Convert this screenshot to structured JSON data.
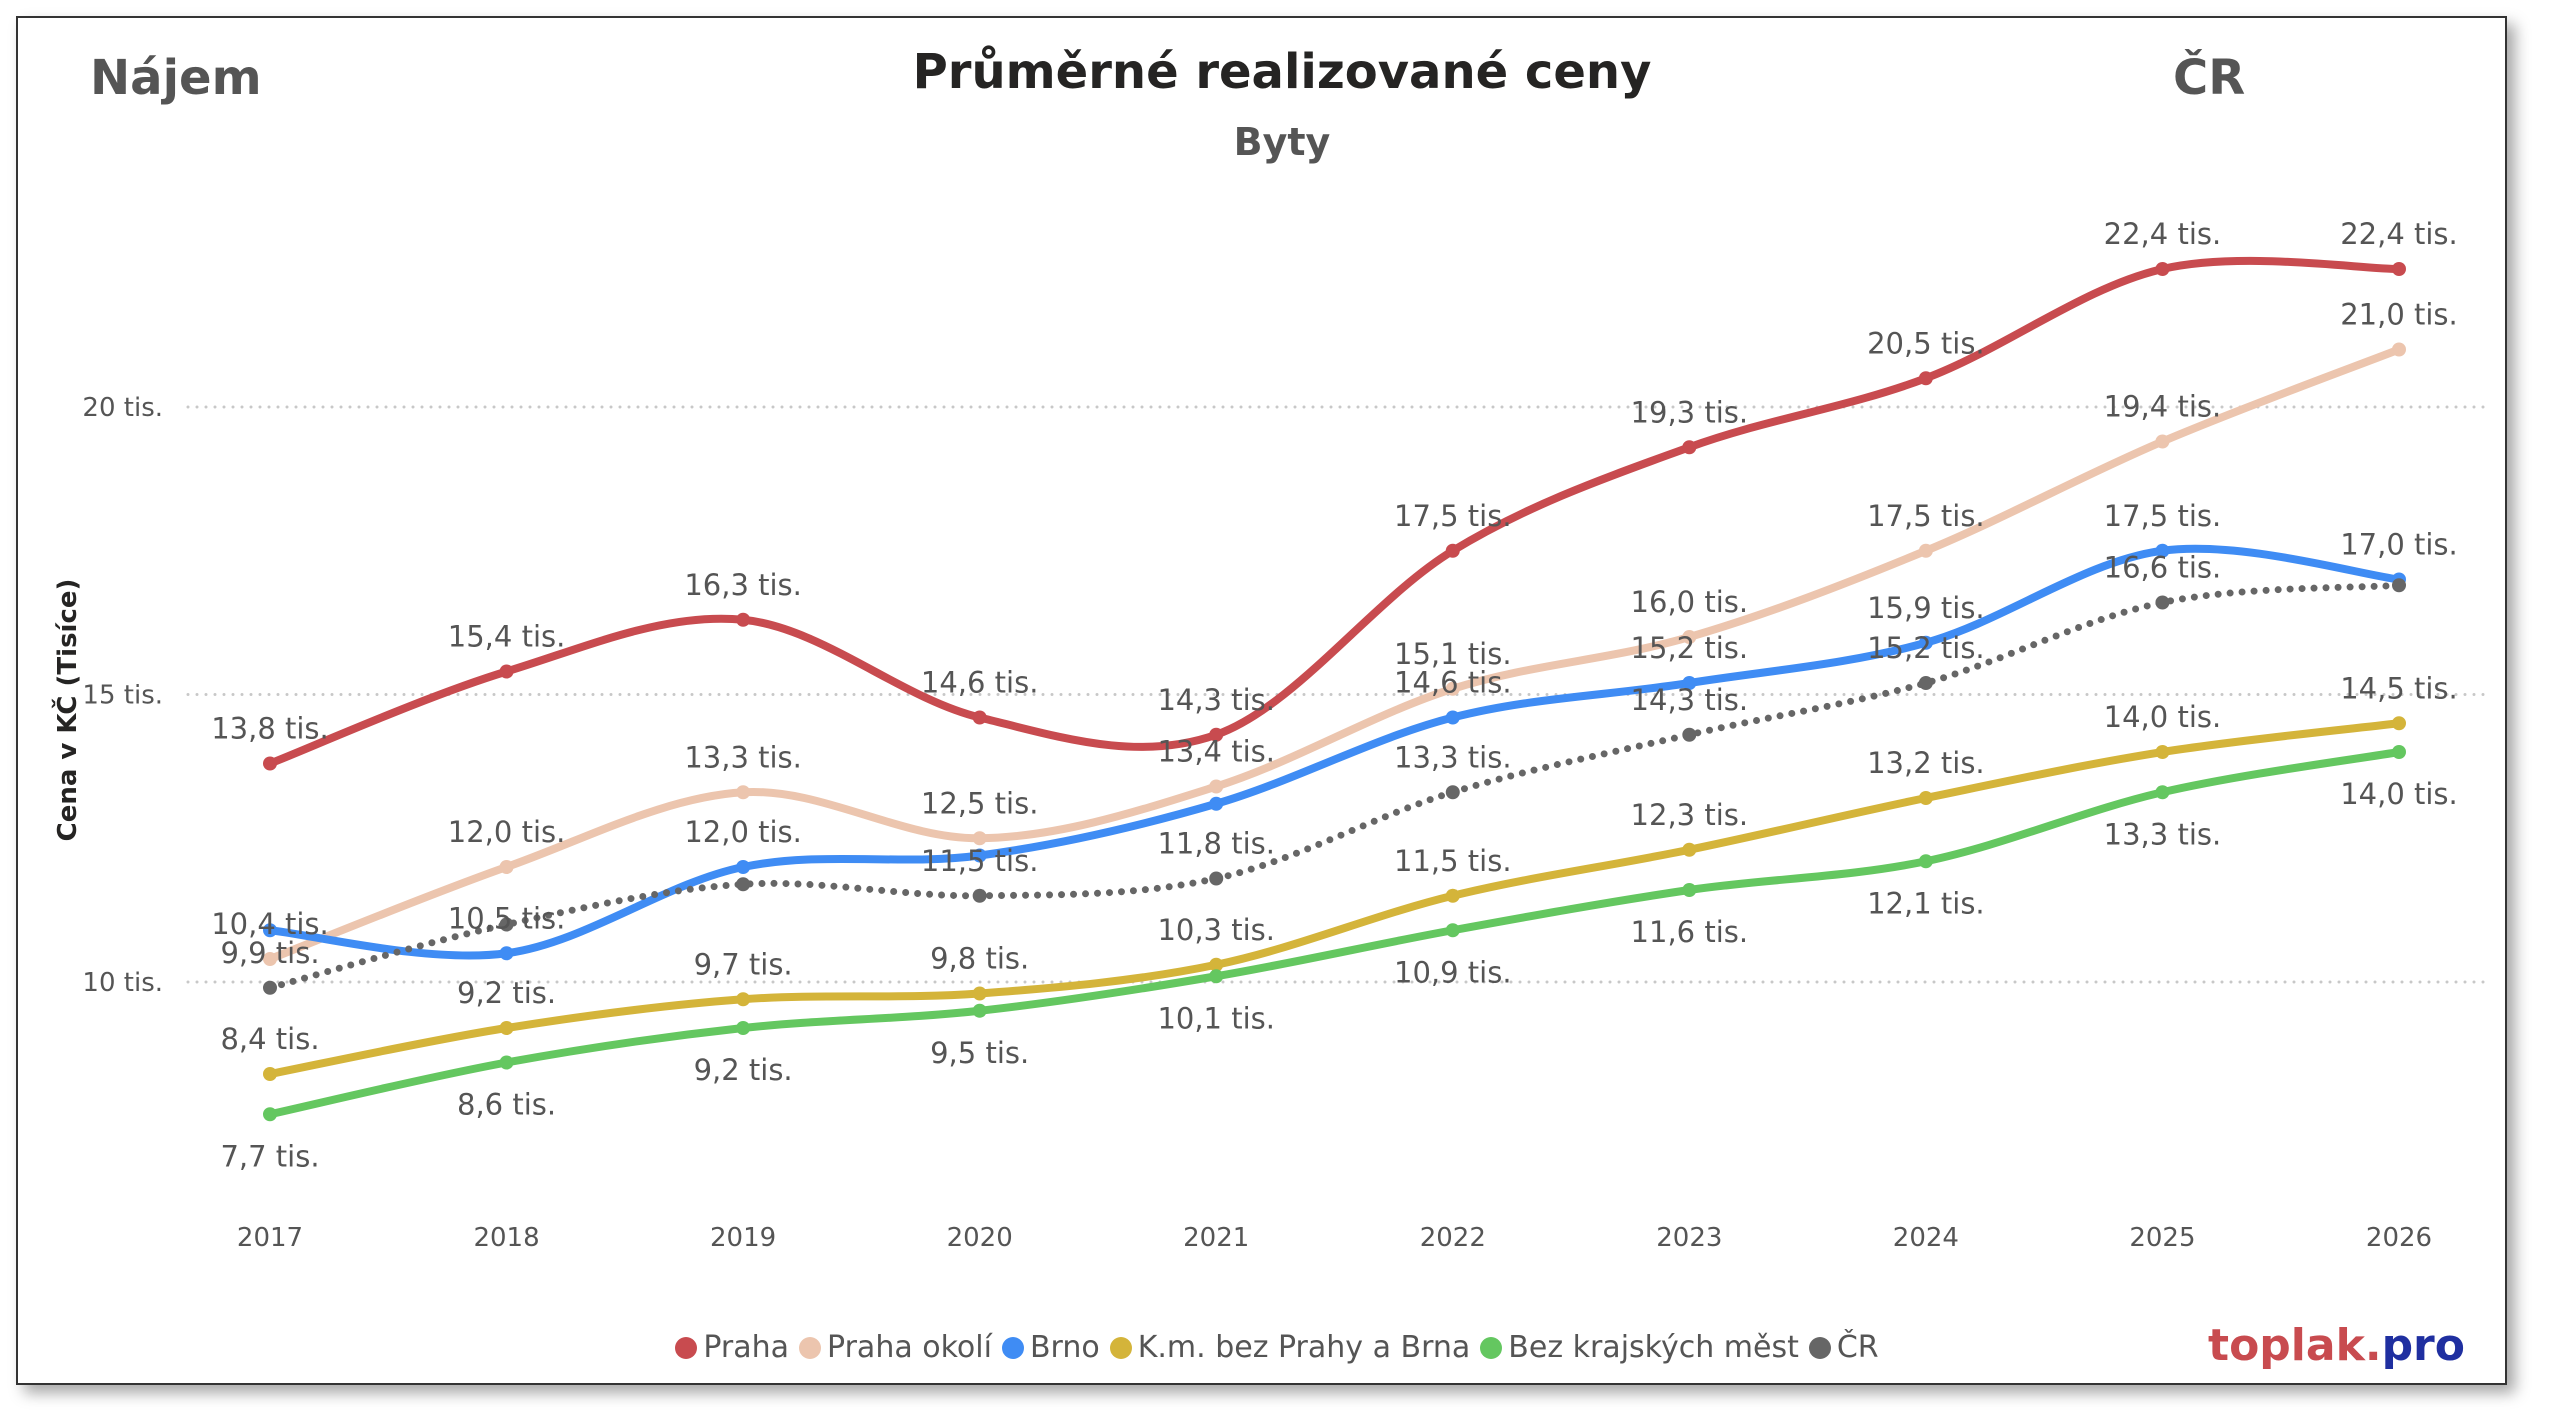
{
  "header": {
    "left": "Nájem",
    "title": "Průměrné realizované ceny",
    "subtitle": "Byty",
    "right": "ČR"
  },
  "logo": {
    "part1": "toplak.",
    "part2": "pro",
    "color1": "#c84b4f",
    "color2": "#1f2fa0"
  },
  "chart_data": {
    "type": "line",
    "title": "Průměrné realizované ceny",
    "subtitle": "Byty",
    "xlabel": "",
    "ylabel": "Cena v KČ (Tisíce)",
    "x": [
      "2017",
      "2018",
      "2019",
      "2020",
      "2021",
      "2022",
      "2023",
      "2024",
      "2025",
      "2026"
    ],
    "ylim": [
      7,
      23
    ],
    "yticks": [
      {
        "value": 10,
        "label": "10 tis."
      },
      {
        "value": 15,
        "label": "15 tis."
      },
      {
        "value": 20,
        "label": "20 tis."
      }
    ],
    "grid": true,
    "legend_position": "bottom",
    "label_suffix": " tis.",
    "series": [
      {
        "name": "Praha",
        "color": "#c84b4f",
        "style": "solid",
        "label_side": "above",
        "values": [
          13.8,
          15.4,
          16.3,
          14.6,
          14.3,
          17.5,
          19.3,
          20.5,
          22.4,
          22.4
        ],
        "labels": [
          true,
          true,
          true,
          true,
          true,
          true,
          true,
          true,
          true,
          true
        ]
      },
      {
        "name": "Praha okolí",
        "color": "#ecc5ae",
        "style": "solid",
        "label_side": "above",
        "values": [
          10.4,
          12.0,
          13.3,
          12.5,
          13.4,
          15.1,
          16.0,
          17.5,
          19.4,
          21.0
        ],
        "labels": [
          true,
          true,
          true,
          true,
          true,
          true,
          true,
          true,
          true,
          true
        ]
      },
      {
        "name": "Brno",
        "color": "#3f8cf4",
        "style": "solid",
        "label_side": "above",
        "values": [
          10.9,
          10.5,
          12.0,
          12.2,
          13.1,
          14.6,
          15.2,
          15.9,
          17.5,
          17.0
        ],
        "labels": [
          false,
          true,
          true,
          false,
          false,
          true,
          true,
          true,
          true,
          true
        ]
      },
      {
        "name": "K.m. bez Prahy a Brna",
        "color": "#d4b43a",
        "style": "solid",
        "label_side": "above",
        "values": [
          8.4,
          9.2,
          9.7,
          9.8,
          10.3,
          11.5,
          12.3,
          13.2,
          14.0,
          14.5
        ],
        "labels": [
          true,
          true,
          true,
          true,
          true,
          true,
          true,
          true,
          true,
          true
        ]
      },
      {
        "name": "Bez krajských měst",
        "color": "#64c760",
        "style": "solid",
        "label_side": "below",
        "values": [
          7.7,
          8.6,
          9.2,
          9.5,
          10.1,
          10.9,
          11.6,
          12.1,
          13.3,
          14.0
        ],
        "labels": [
          true,
          true,
          true,
          true,
          true,
          true,
          true,
          true,
          true,
          true
        ]
      },
      {
        "name": "ČR",
        "color": "#666666",
        "style": "dotted",
        "label_side": "above",
        "values": [
          9.9,
          11.0,
          11.7,
          11.5,
          11.8,
          13.3,
          14.3,
          15.2,
          16.6,
          16.9
        ],
        "labels": [
          true,
          false,
          false,
          true,
          true,
          true,
          true,
          true,
          true,
          false
        ]
      }
    ]
  }
}
